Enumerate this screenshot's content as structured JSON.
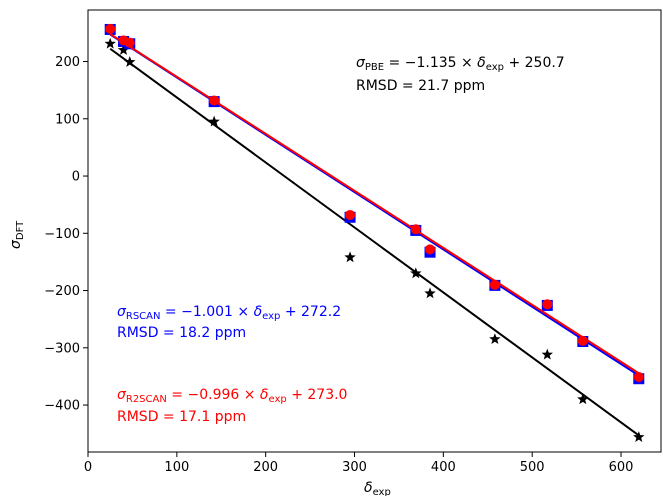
{
  "chart_data": {
    "type": "scatter",
    "xlabel": "δexp",
    "ylabel": "σDFT",
    "xlim": [
      0,
      645
    ],
    "ylim": [
      -482,
      290
    ],
    "x_ticks": [
      0,
      100,
      200,
      300,
      400,
      500,
      600
    ],
    "y_ticks": [
      -400,
      -300,
      -200,
      -100,
      0,
      100,
      200
    ],
    "grid": false,
    "series": [
      {
        "key": "pbe",
        "color": "#000000",
        "marker": "star",
        "fit": {
          "slope": -1.135,
          "intercept": 250.7
        },
        "points": [
          [
            25,
            231
          ],
          [
            40,
            220
          ],
          [
            47,
            199
          ],
          [
            142,
            95
          ],
          [
            295,
            -142
          ],
          [
            369,
            -170
          ],
          [
            385,
            -205
          ],
          [
            458,
            -285
          ],
          [
            517,
            -312
          ],
          [
            557,
            -390
          ],
          [
            620,
            -456
          ]
        ]
      },
      {
        "key": "rscan",
        "color": "#0000ff",
        "marker": "square",
        "fit": {
          "slope": -1.001,
          "intercept": 272.2
        },
        "points": [
          [
            25,
            256
          ],
          [
            40,
            235
          ],
          [
            47,
            231
          ],
          [
            142,
            130
          ],
          [
            295,
            -72
          ],
          [
            369,
            -95
          ],
          [
            385,
            -133
          ],
          [
            458,
            -191
          ],
          [
            517,
            -226
          ],
          [
            557,
            -289
          ],
          [
            620,
            -354
          ]
        ]
      },
      {
        "key": "r2scan",
        "color": "#ff0000",
        "marker": "circle",
        "fit": {
          "slope": -0.996,
          "intercept": 273.0
        },
        "points": [
          [
            25,
            257
          ],
          [
            40,
            237
          ],
          [
            47,
            233
          ],
          [
            142,
            132
          ],
          [
            295,
            -68
          ],
          [
            369,
            -93
          ],
          [
            385,
            -128
          ],
          [
            458,
            -190
          ],
          [
            517,
            -224
          ],
          [
            557,
            -288
          ],
          [
            620,
            -351
          ]
        ]
      }
    ],
    "annotations": {
      "pbe": {
        "line1": "σPBE = −1.135 × δexp + 250.7",
        "line2": "RMSD = 21.7 ppm"
      },
      "rscan": {
        "line1": "σRSCAN = −1.001 × δexp + 272.2",
        "line2": "RMSD = 18.2 ppm"
      },
      "r2scan": {
        "line1": "σR2SCAN = −0.996 × δexp + 273.0",
        "line2": "RMSD = 17.1 ppm"
      }
    }
  }
}
